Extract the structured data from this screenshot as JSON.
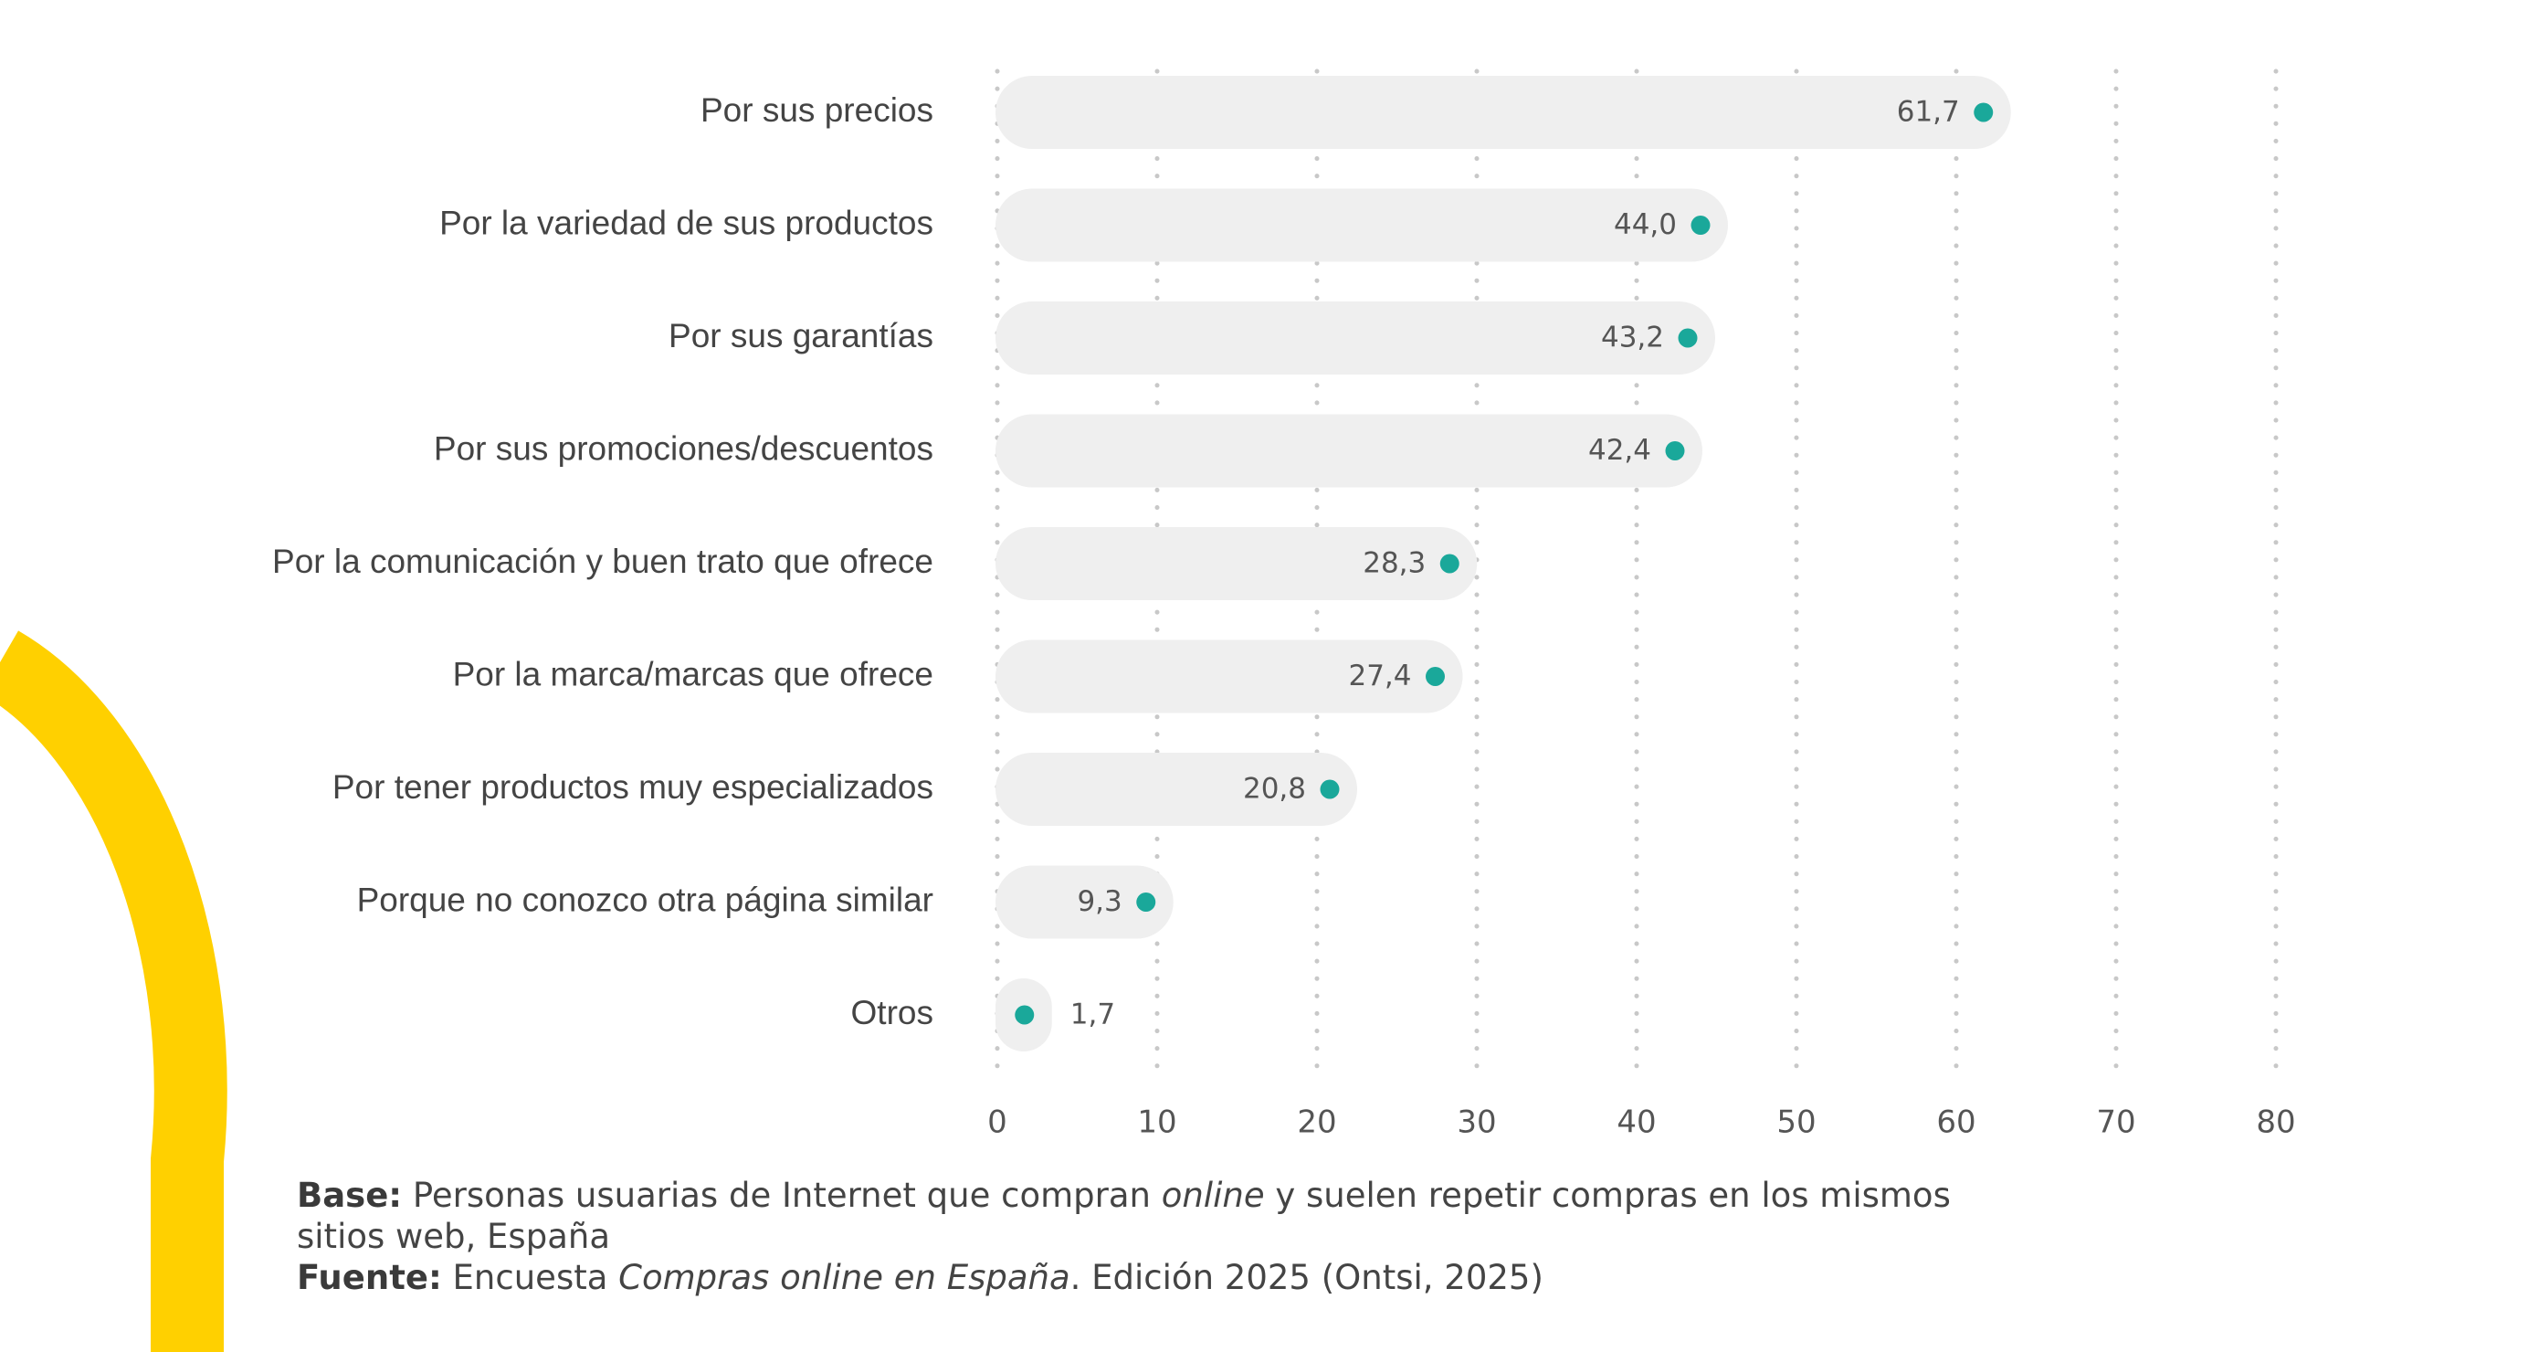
{
  "colors": {
    "track": "#efefef",
    "dot": "#1aa89a",
    "grid": "#c8c8c8",
    "accent_arc": "#ffd000"
  },
  "chart_data": {
    "type": "bar",
    "orientation": "horizontal",
    "categories": [
      "Por sus precios",
      "Por la variedad de sus productos",
      "Por sus garantías",
      "Por sus promociones/descuentos",
      "Por la comunicación y buen trato que ofrece",
      "Por la marca/marcas que ofrece",
      "Por tener productos muy especializados",
      "Porque no conozco otra página similar",
      "Otros"
    ],
    "values": [
      61.7,
      44.0,
      43.2,
      42.4,
      28.3,
      27.4,
      20.8,
      9.3,
      1.7
    ],
    "value_labels": [
      "61,7",
      "44,0",
      "43,2",
      "42,4",
      "28,3",
      "27,4",
      "20,8",
      "9,3",
      "1,7"
    ],
    "xlim": [
      0,
      80
    ],
    "xticks": [
      "0",
      "10",
      "20",
      "30",
      "40",
      "50",
      "60",
      "70",
      "80"
    ],
    "grid": "vertical dotted",
    "title": "",
    "xlabel": "",
    "ylabel": ""
  },
  "notes": {
    "base_label": "Base:",
    "base_text_1": " Personas usuarias de Internet que compran ",
    "base_text_italic": "online",
    "base_text_2": " y suelen repetir compras en los mismos sitios web, España",
    "source_label": "Fuente:",
    "source_text_1": " Encuesta ",
    "source_text_italic": "Compras online en España",
    "source_text_2": ". Edición 2025 (Ontsi, 2025)"
  }
}
